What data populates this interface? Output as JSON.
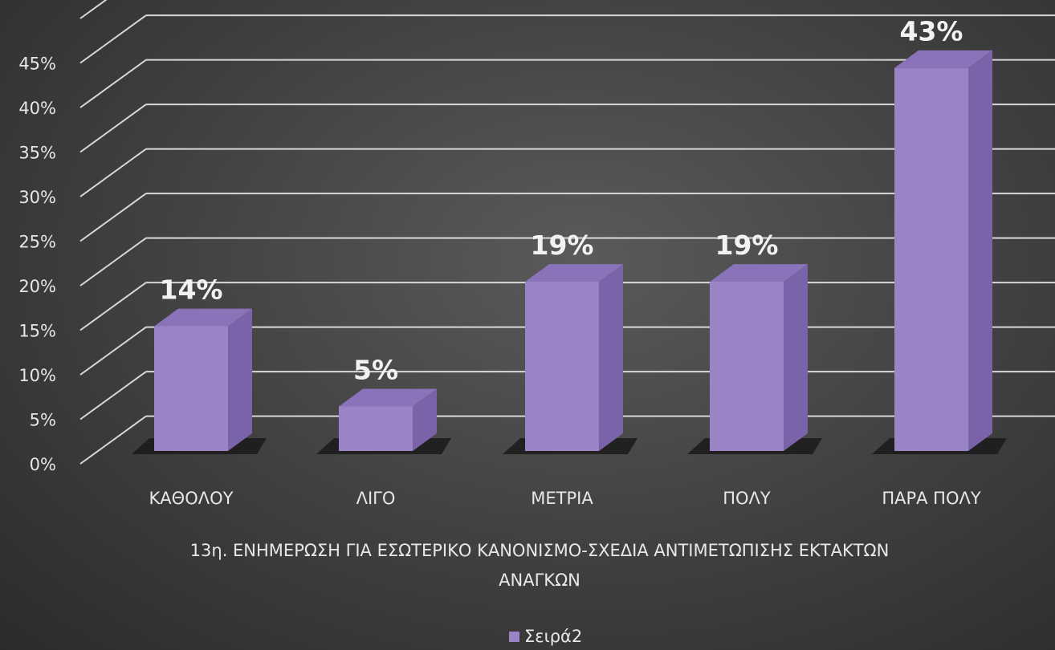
{
  "chart_data": {
    "type": "bar",
    "categories": [
      "ΚΑΘΟΛΟΥ",
      "ΛΙΓΟ",
      "ΜΕΤΡΙΑ",
      "ΠΟΛΥ",
      "ΠΑΡΑ ΠΟΛΥ"
    ],
    "series": [
      {
        "name": "Σειρά2",
        "values": [
          0.14,
          0.05,
          0.19,
          0.19,
          0.43
        ]
      }
    ],
    "data_labels": [
      "14%",
      "5%",
      "19%",
      "19%",
      "43%"
    ],
    "y_ticks": [
      "0%",
      "5%",
      "10%",
      "15%",
      "20%",
      "25%",
      "30%",
      "35%",
      "40%",
      "45%"
    ],
    "ylim": [
      0,
      0.45
    ],
    "xlabel_lines": [
      "13η. ΕΝΗΜΕΡΩΣΗ ΓΙΑ ΕΣΩΤΕΡΙΚΟ ΚΑΝΟΝΙΣΜΟ-ΣΧΕΔΙΑ ΑΝΤΙΜΕΤΩΠΙΣΗΣ ΕΚΤΑΚΤΩΝ",
      "ΑΝΑΓΚΩΝ"
    ],
    "ylabel": "",
    "grid": true,
    "legend": {
      "position": "bottom",
      "entries": [
        "Σειρά2"
      ]
    },
    "colors": {
      "bar_front": "#9b84c6",
      "bar_side": "#7a63a8",
      "bar_top": "#8a73b8",
      "grid": "#d8d8d8",
      "background": "#3f3f3f"
    }
  }
}
